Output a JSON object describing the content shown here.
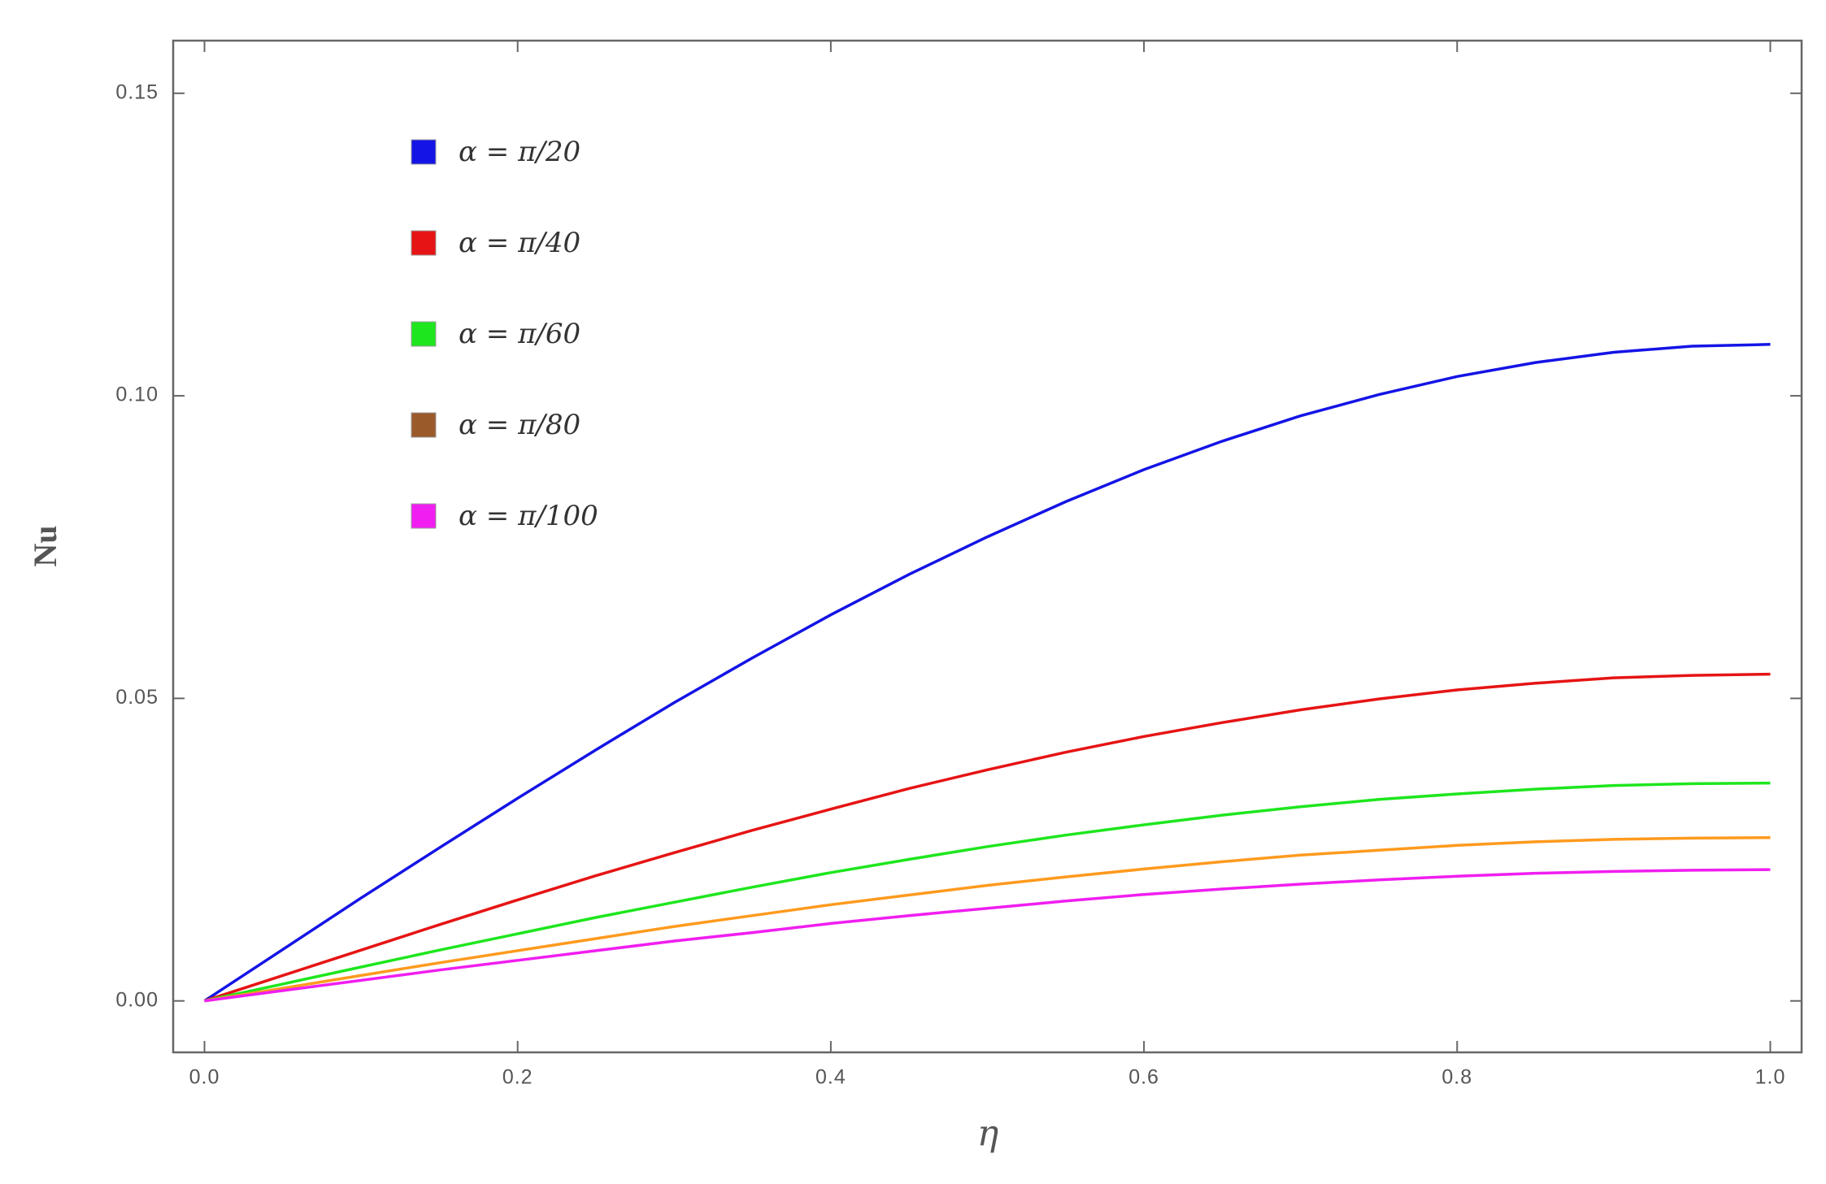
{
  "chart_data": {
    "type": "line",
    "xlabel": "η",
    "ylabel": "Nu",
    "x": [
      0,
      0.05,
      0.1,
      0.15,
      0.2,
      0.25,
      0.3,
      0.35,
      0.4,
      0.45,
      0.5,
      0.55,
      0.6,
      0.65,
      0.7,
      0.75,
      0.8,
      0.85,
      0.9,
      0.95,
      1.0
    ],
    "series": [
      {
        "name": "α = π/20",
        "color": "#1414e6",
        "values": [
          0,
          0.0085,
          0.017,
          0.0253,
          0.0335,
          0.0415,
          0.0493,
          0.0567,
          0.0638,
          0.0705,
          0.0767,
          0.0825,
          0.0878,
          0.0925,
          0.0967,
          0.1002,
          0.1032,
          0.1055,
          0.1072,
          0.1082,
          0.1085
        ]
      },
      {
        "name": "α = π/40",
        "color": "#e61414",
        "values": [
          0,
          0.0042,
          0.0084,
          0.0126,
          0.0167,
          0.0207,
          0.0245,
          0.0282,
          0.0317,
          0.0351,
          0.0382,
          0.0411,
          0.0437,
          0.046,
          0.0481,
          0.0499,
          0.0514,
          0.0525,
          0.0534,
          0.0538,
          0.054
        ]
      },
      {
        "name": "α = π/60",
        "color": "#1ee61e",
        "values": [
          0,
          0.0028,
          0.0056,
          0.0084,
          0.0111,
          0.0138,
          0.0163,
          0.0188,
          0.0212,
          0.0234,
          0.0255,
          0.0274,
          0.0291,
          0.0307,
          0.0321,
          0.0333,
          0.0342,
          0.035,
          0.0356,
          0.0359,
          0.036
        ]
      },
      {
        "name": "α = π/80",
        "color": "#ff9a1e",
        "legend_color": "#9a5a2a",
        "values": [
          0,
          0.0021,
          0.0042,
          0.0063,
          0.0083,
          0.0103,
          0.0123,
          0.0141,
          0.0159,
          0.0175,
          0.0191,
          0.0205,
          0.0218,
          0.023,
          0.0241,
          0.0249,
          0.0257,
          0.0263,
          0.0267,
          0.0269,
          0.027
        ]
      },
      {
        "name": "α = π/100",
        "color": "#f01ef0",
        "values": [
          0,
          0.0017,
          0.0034,
          0.0051,
          0.0067,
          0.0083,
          0.0099,
          0.0113,
          0.0128,
          0.0141,
          0.0153,
          0.0165,
          0.0176,
          0.0185,
          0.0193,
          0.02,
          0.0206,
          0.0211,
          0.0214,
          0.0216,
          0.0217
        ]
      }
    ],
    "xlim": [
      -0.02,
      1.02
    ],
    "xticks": [
      {
        "value": 0,
        "label": "0.0"
      },
      0.2,
      0.4,
      0.6,
      0.8,
      {
        "value": 1,
        "label": "1.0"
      }
    ],
    "ylim": [
      -0.0085,
      0.1587
    ],
    "yticks": [
      {
        "value": 0,
        "label": "0.00"
      },
      0.05,
      {
        "value": 0.1,
        "label": "0.10"
      },
      0.15
    ],
    "legend": "upper left"
  }
}
